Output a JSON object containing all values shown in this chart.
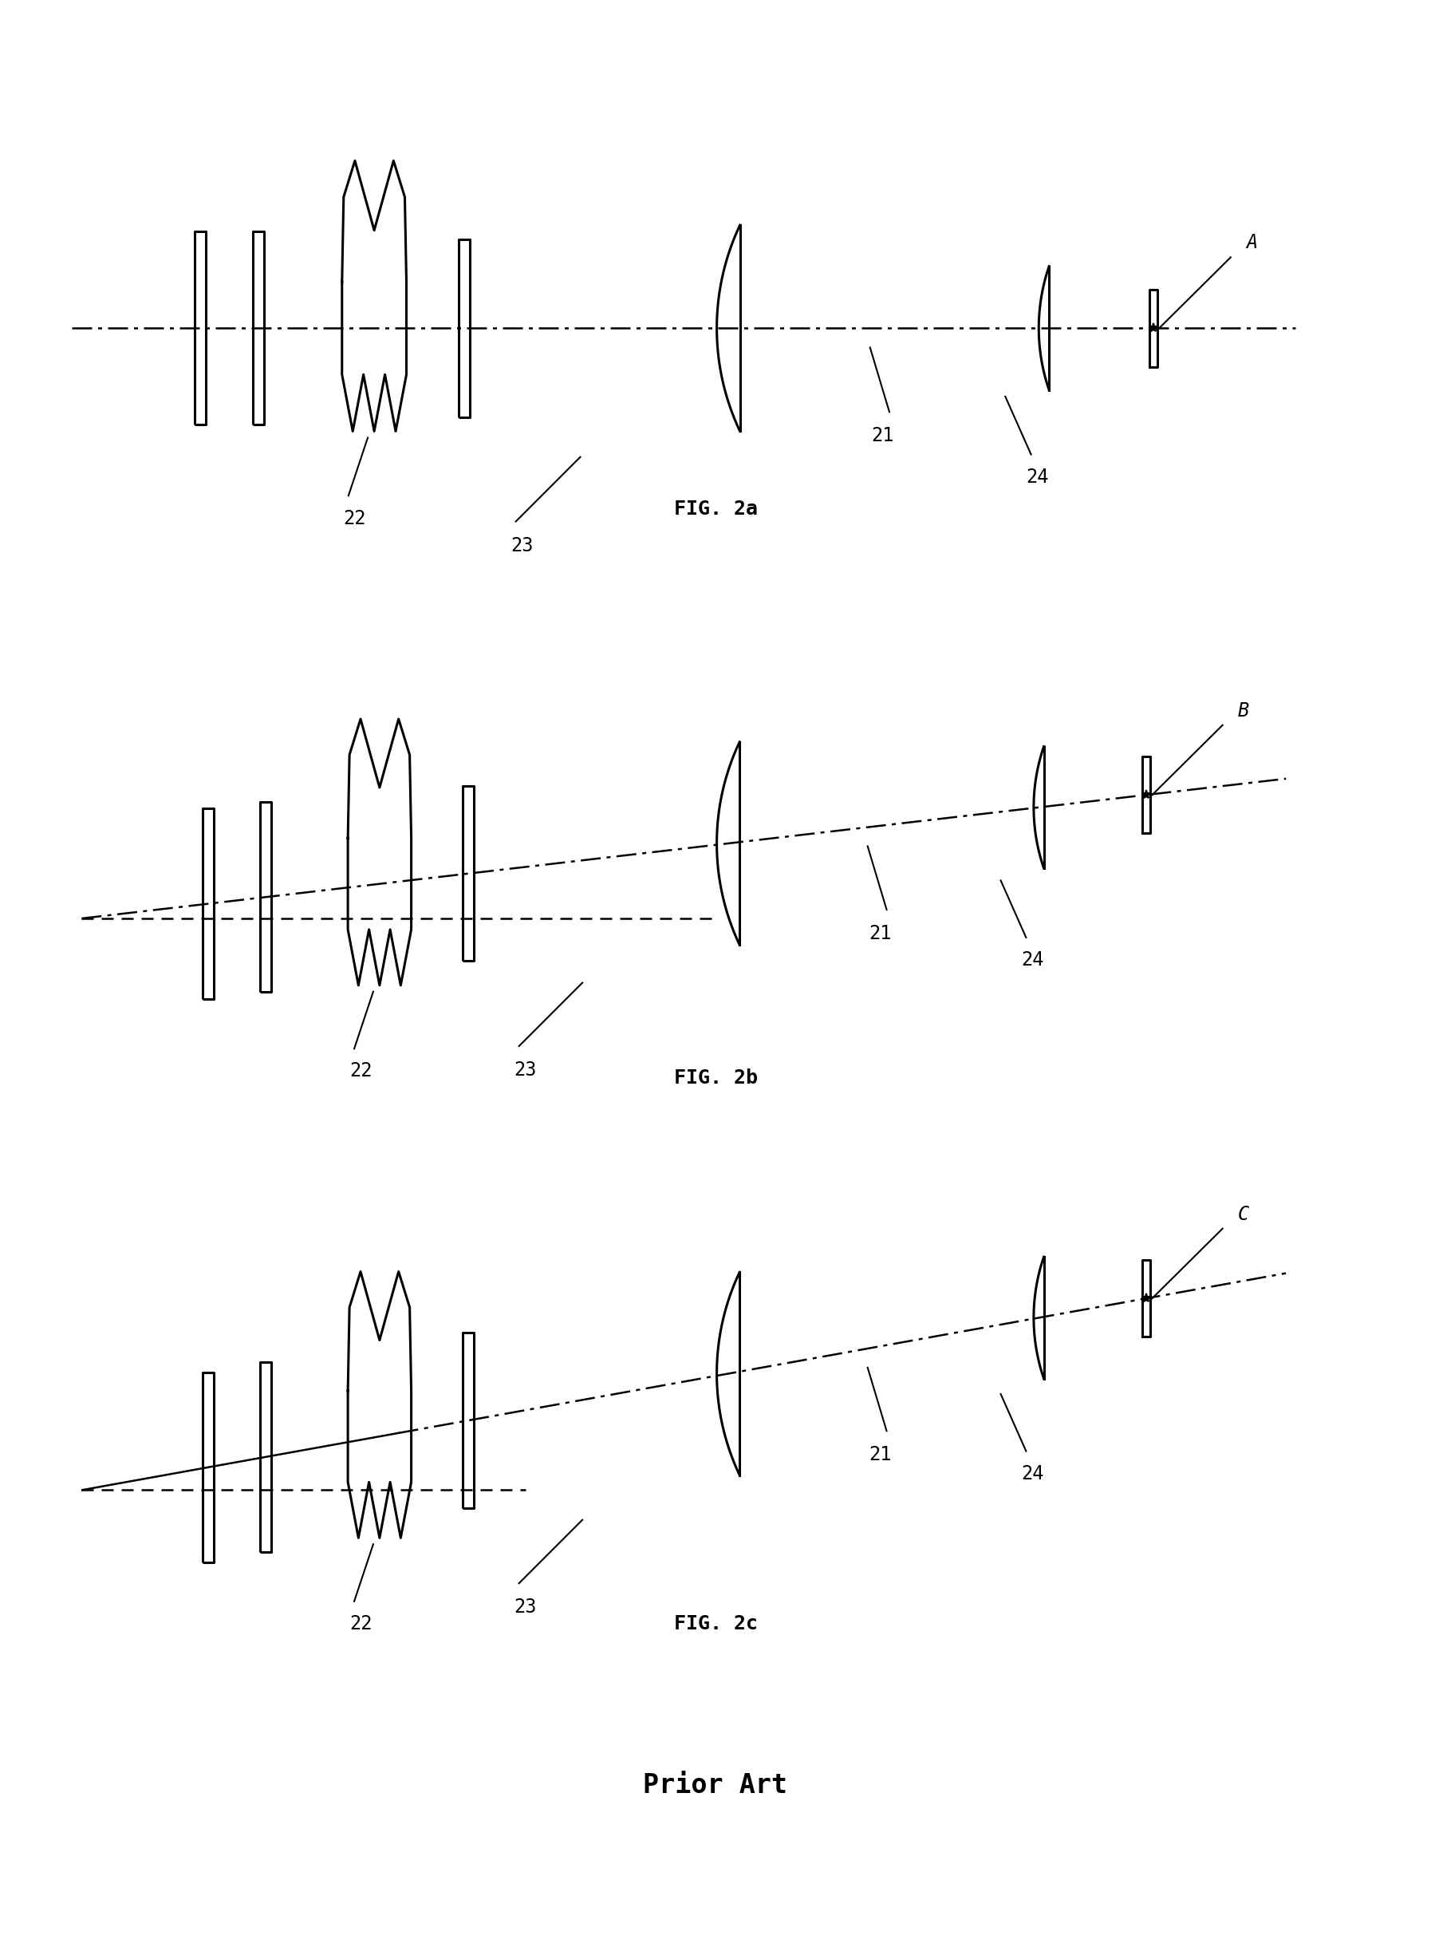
{
  "bg_color": "#ffffff",
  "line_color": "#000000",
  "fig_label_a": "FIG. 2a",
  "fig_label_b": "FIG. 2b",
  "fig_label_c": "FIG. 2c",
  "prior_art_label": "Prior Art",
  "label_22": "22",
  "label_23": "23",
  "label_21": "21",
  "label_24": "24",
  "label_A": "A",
  "label_B": "B",
  "label_C": "C",
  "fig_width": 17.94,
  "fig_height": 24.45
}
